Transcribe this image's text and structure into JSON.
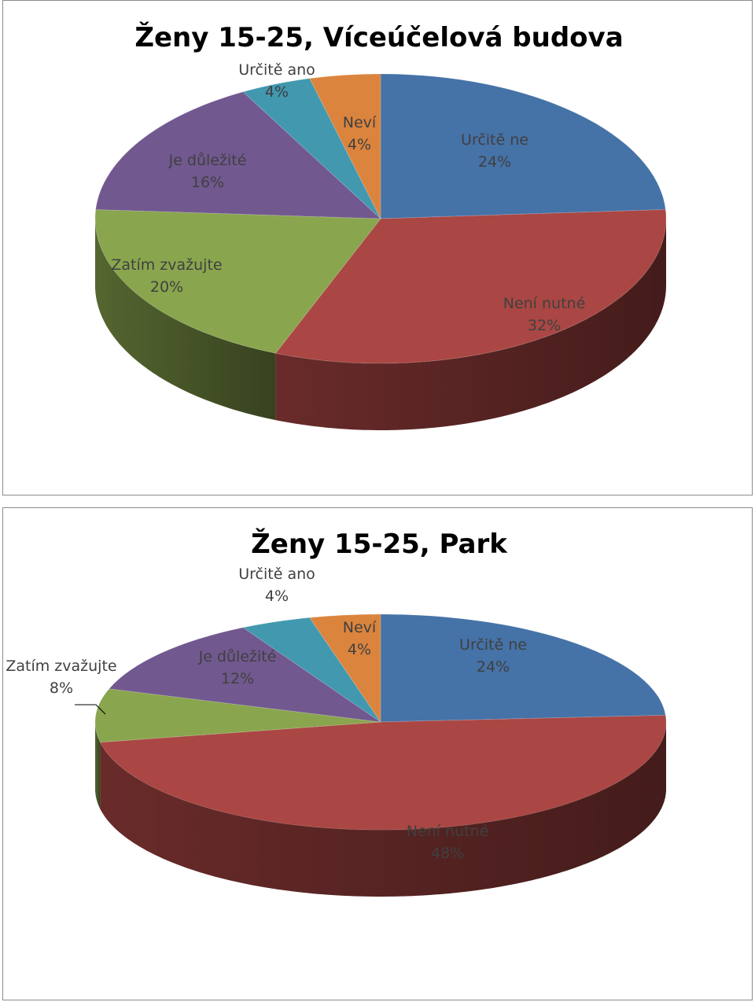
{
  "chart_data": [
    {
      "type": "pie",
      "title": "Ženy 15-25, Víceúčelová budova",
      "slices": [
        {
          "label": "Určitě ne",
          "value": 24,
          "percent_label": "24%",
          "color": "#4572A7"
        },
        {
          "label": "Není nutné",
          "value": 32,
          "percent_label": "32%",
          "color": "#AA4643"
        },
        {
          "label": "Zatím zvažujte",
          "value": 20,
          "percent_label": "20%",
          "color": "#89A54E"
        },
        {
          "label": "Je důležité",
          "value": 16,
          "percent_label": "16%",
          "color": "#71588F"
        },
        {
          "label": "Určitě ano",
          "value": 4,
          "percent_label": "4%",
          "color": "#4198AF"
        },
        {
          "label": "Neví",
          "value": 4,
          "percent_label": "4%",
          "color": "#DB843D"
        }
      ]
    },
    {
      "type": "pie",
      "title": "Ženy 15-25, Park",
      "slices": [
        {
          "label": "Určitě ne",
          "value": 24,
          "percent_label": "24%",
          "color": "#4572A7"
        },
        {
          "label": "Není nutné",
          "value": 48,
          "percent_label": "48%",
          "color": "#AA4643"
        },
        {
          "label": "Zatím zvažujte",
          "value": 8,
          "percent_label": "8%",
          "color": "#89A54E"
        },
        {
          "label": "Je důležité",
          "value": 12,
          "percent_label": "12%",
          "color": "#71588F"
        },
        {
          "label": "Určitě ano",
          "value": 4,
          "percent_label": "4%",
          "color": "#4198AF"
        },
        {
          "label": "Neví",
          "value": 4,
          "percent_label": "4%",
          "color": "#DB843D"
        }
      ]
    }
  ]
}
